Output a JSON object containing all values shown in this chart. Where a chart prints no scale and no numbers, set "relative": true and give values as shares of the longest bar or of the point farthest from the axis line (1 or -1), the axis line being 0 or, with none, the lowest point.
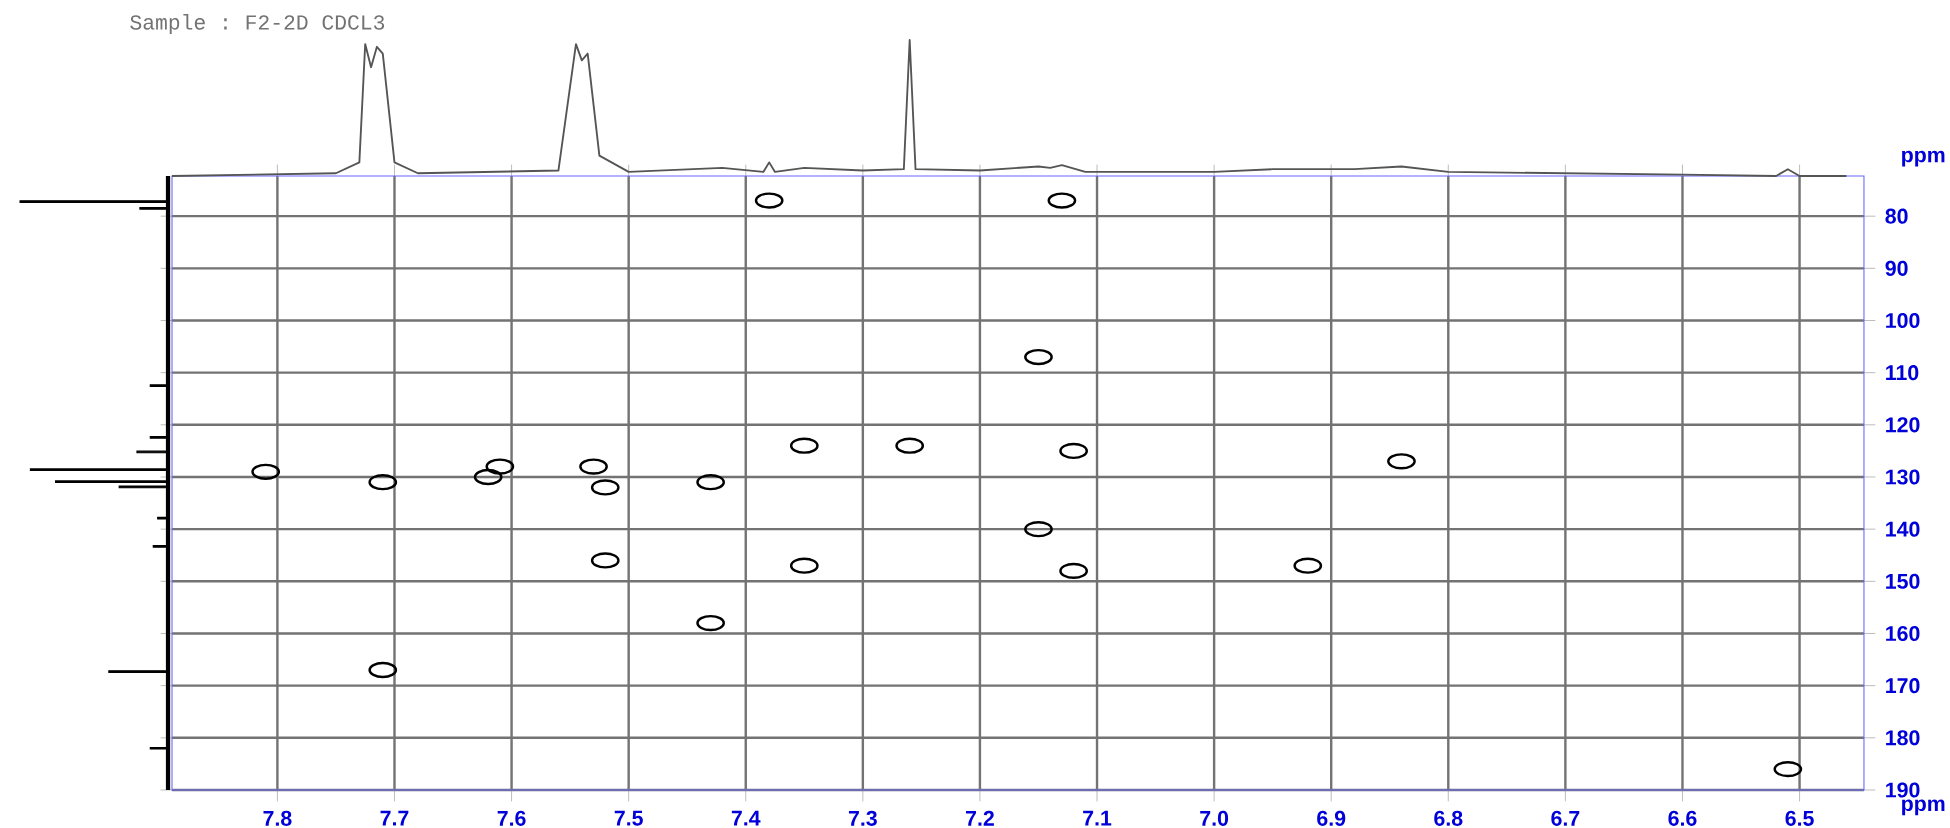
{
  "chart_data": [
    {
      "type": "scatter",
      "xlabel": "ppm",
      "ylabel": "ppm",
      "annotations": [
        "Sample :    F2-2D       CDCL3"
      ],
      "x": [
        7.38,
        7.13,
        7.81,
        7.71,
        7.62,
        7.61,
        7.53,
        7.52,
        7.43,
        7.35,
        7.26,
        7.52,
        7.35,
        7.43,
        7.71,
        7.15,
        7.12,
        7.15,
        7.12,
        6.92,
        6.84,
        6.51
      ],
      "values": [
        77,
        77,
        129,
        131,
        130,
        128,
        128,
        132,
        131,
        124,
        124,
        146,
        147,
        158,
        167,
        107,
        125,
        140,
        148,
        147,
        127,
        186
      ],
      "color": "#000000",
      "marker": "circle",
      "xlim": [
        7.89,
        6.445
      ],
      "ylim": [
        190,
        72.3
      ],
      "xticks": [
        7.8,
        7.7,
        7.6,
        7.5,
        7.4,
        7.3,
        7.2,
        7.1,
        {
          "value": 7.0,
          "label": "7.0"
        },
        6.9,
        6.8,
        6.7,
        6.6,
        6.5
      ],
      "yticks": [
        80,
        90,
        100,
        110,
        120,
        130,
        140,
        150,
        160,
        170,
        180,
        190
      ],
      "grid": true
    },
    {
      "type": "line",
      "relative": true,
      "color": "#555555",
      "xlim": [
        7.89,
        6.445
      ],
      "x": [
        7.89,
        7.75,
        7.73,
        7.725,
        7.72,
        7.715,
        7.71,
        7.7,
        7.68,
        7.56,
        7.545,
        7.54,
        7.535,
        7.525,
        7.5,
        7.42,
        7.385,
        7.38,
        7.375,
        7.35,
        7.3,
        7.265,
        7.26,
        7.255,
        7.2,
        7.15,
        7.14,
        7.13,
        7.11,
        7.0,
        6.95,
        6.88,
        6.84,
        6.8,
        6.6,
        6.52,
        6.51,
        6.5,
        6.46
      ],
      "values": [
        0.0,
        0.02,
        0.1,
        0.97,
        0.8,
        0.95,
        0.9,
        0.1,
        0.02,
        0.04,
        0.97,
        0.85,
        0.9,
        0.15,
        0.03,
        0.06,
        0.03,
        0.1,
        0.03,
        0.06,
        0.04,
        0.05,
        1.0,
        0.05,
        0.04,
        0.07,
        0.06,
        0.08,
        0.03,
        0.03,
        0.05,
        0.05,
        0.07,
        0.03,
        0.01,
        0.0,
        0.05,
        0.0,
        0.0
      ]
    },
    {
      "type": "bar",
      "orientation": "horizontal",
      "relative": true,
      "color": "#000000",
      "ylim": [
        190,
        72.3
      ],
      "x": [
        77.2,
        78.5,
        112.5,
        122.4,
        125.2,
        128.6,
        130.9,
        131.9,
        137.9,
        143.3,
        167.3,
        182
      ],
      "values": [
        1,
        0.19,
        0.12,
        0.12,
        0.21,
        0.93,
        0.76,
        0.33,
        0.07,
        0.1,
        0.4,
        0.12
      ]
    }
  ]
}
